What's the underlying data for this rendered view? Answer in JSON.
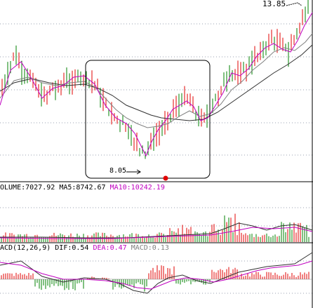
{
  "price_chart": {
    "high_label": "13.85",
    "low_label": "8.05"
  },
  "volume_header": {
    "title": "OLUME:7027.92",
    "ma5": "MA5:8742.67",
    "ma10": "MA10:10242.19"
  },
  "macd_header": {
    "title": "ACD(12,26,9)",
    "dif": "DIF:0.54",
    "dea": "DEA:0.47",
    "macd": "MACD:0.13"
  },
  "colors": {
    "up": "#e00000",
    "down": "#008000",
    "ma_magenta": "#c000c0",
    "ma_dark": "#303030",
    "grid": "#9aa0b0",
    "text": "#000000"
  }
}
